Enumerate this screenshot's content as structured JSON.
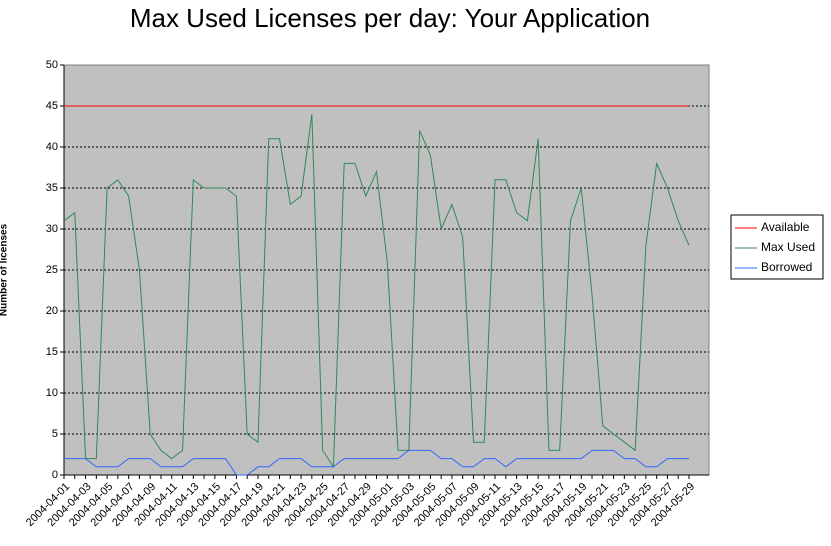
{
  "chart_data": {
    "type": "line",
    "title": "Max Used Licenses per day: Your Application",
    "y_label": "Number of licenses",
    "categories": [
      "2004-04-01",
      null,
      "2004-04-03",
      null,
      "2004-04-05",
      null,
      "2004-04-07",
      null,
      "2004-04-09",
      null,
      "2004-04-11",
      null,
      "2004-04-13",
      null,
      "2004-04-15",
      null,
      "2004-04-17",
      null,
      "2004-04-19",
      null,
      "2004-04-21",
      null,
      "2004-04-23",
      null,
      "2004-04-25",
      null,
      "2004-04-27",
      null,
      "2004-04-29",
      null,
      "2004-05-01",
      null,
      "2004-05-03",
      null,
      "2004-05-05",
      null,
      "2004-05-07",
      null,
      "2004-05-09",
      null,
      "2004-05-11",
      null,
      "2004-05-13",
      null,
      "2004-05-15",
      null,
      "2004-05-17",
      null,
      "2004-05-19",
      null,
      "2004-05-21",
      null,
      "2004-05-23",
      null,
      "2004-05-25",
      null,
      "2004-05-27",
      null,
      "2004-05-29"
    ],
    "series": [
      {
        "name": "Available",
        "color": "#ff0000",
        "values": [
          45,
          45,
          45,
          45,
          45,
          45,
          45,
          45,
          45,
          45,
          45,
          45,
          45,
          45,
          45,
          45,
          45,
          45,
          45,
          45,
          45,
          45,
          45,
          45,
          45,
          45,
          45,
          45,
          45,
          45,
          45,
          45,
          45,
          45,
          45,
          45,
          45,
          45,
          45,
          45,
          45,
          45,
          45,
          45,
          45,
          45,
          45,
          45,
          45,
          45,
          45,
          45,
          45,
          45,
          45,
          45,
          45,
          45,
          45
        ]
      },
      {
        "name": "Max Used",
        "color": "#2e8b57",
        "values": [
          31,
          32,
          2,
          2,
          35,
          36,
          34,
          25,
          5,
          3,
          2,
          3,
          36,
          35,
          35,
          35,
          34,
          5,
          4,
          41,
          41,
          33,
          34,
          44,
          3,
          1,
          38,
          38,
          34,
          37,
          26,
          3,
          3,
          42,
          39,
          30,
          33,
          29,
          4,
          4,
          36,
          36,
          32,
          31,
          41,
          3,
          3,
          31,
          35,
          22,
          6,
          5,
          4,
          3,
          28,
          38,
          35,
          31,
          28
        ]
      },
      {
        "name": "Borrowed",
        "color": "#3366ff",
        "values": [
          2,
          2,
          2,
          1,
          1,
          1,
          2,
          2,
          2,
          1,
          1,
          1,
          2,
          2,
          2,
          2,
          0,
          0,
          1,
          1,
          2,
          2,
          2,
          1,
          1,
          1,
          2,
          2,
          2,
          2,
          2,
          2,
          3,
          3,
          3,
          2,
          2,
          1,
          1,
          2,
          2,
          1,
          2,
          2,
          2,
          2,
          2,
          2,
          2,
          3,
          3,
          3,
          2,
          2,
          1,
          1,
          2,
          2,
          2
        ]
      }
    ],
    "ylim": [
      0,
      50
    ],
    "yticks": [
      0,
      5,
      10,
      15,
      20,
      25,
      30,
      35,
      40,
      45,
      50
    ],
    "grid": true,
    "legend": "right"
  }
}
